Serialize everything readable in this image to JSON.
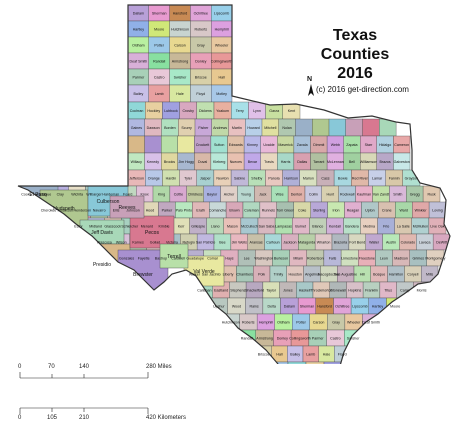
{
  "map": {
    "title_line1": "Texas",
    "title_line2": "Counties",
    "title_line3": "2016",
    "copyright": "(c) 2016 get-direction.com",
    "north_label": "N"
  },
  "scale": {
    "miles_ticks": [
      "0",
      "70",
      "140",
      "280 Miles"
    ],
    "km_ticks": [
      "0",
      "105",
      "210",
      "420 Kilometers"
    ]
  },
  "counties": [
    {
      "name": "Dallam",
      "color": "#b8a0d8"
    },
    {
      "name": "Sherman",
      "color": "#e89ad0"
    },
    {
      "name": "Hansford",
      "color": "#c88a54"
    },
    {
      "name": "Ochiltree",
      "color": "#e0a4d8"
    },
    {
      "name": "Lipscomb",
      "color": "#98d0ea"
    },
    {
      "name": "Hartley",
      "color": "#90b0e8"
    },
    {
      "name": "Moore",
      "color": "#d0e878"
    },
    {
      "name": "Hutchinson",
      "color": "#c8d4d0"
    },
    {
      "name": "Roberts",
      "color": "#d8c8c8"
    },
    {
      "name": "Hemphill",
      "color": "#dca0e0"
    },
    {
      "name": "Oldham",
      "color": "#b8f0a0"
    },
    {
      "name": "Potter",
      "color": "#9cc8e8"
    },
    {
      "name": "Carson",
      "color": "#e8d890"
    },
    {
      "name": "Gray",
      "color": "#c8c8a8"
    },
    {
      "name": "Wheeler",
      "color": "#e8c8a0"
    },
    {
      "name": "Deaf Smith",
      "color": "#d8b0d8"
    },
    {
      "name": "Randall",
      "color": "#88e0a0"
    },
    {
      "name": "Armstrong",
      "color": "#c8b898"
    },
    {
      "name": "Donley",
      "color": "#e8a0b8"
    },
    {
      "name": "Collingsworth",
      "color": "#e89898"
    },
    {
      "name": "Parmer",
      "color": "#a8d0b8"
    },
    {
      "name": "Castro",
      "color": "#e8c8d8"
    },
    {
      "name": "Swisher",
      "color": "#a8e8c8"
    },
    {
      "name": "Briscoe",
      "color": "#d8d0a8"
    },
    {
      "name": "Hall",
      "color": "#e8c890"
    },
    {
      "name": "Bailey",
      "color": "#c8c0e8"
    },
    {
      "name": "Lamb",
      "color": "#e8a0a0"
    },
    {
      "name": "Hale",
      "color": "#d8e8a0"
    },
    {
      "name": "Floyd",
      "color": "#c0d0d8"
    },
    {
      "name": "Motley",
      "color": "#a8c8e8"
    },
    {
      "name": "Cochran",
      "color": "#90d8d8"
    },
    {
      "name": "Hockley",
      "color": "#e8d0a0"
    },
    {
      "name": "Lubbock",
      "color": "#a0a0e0"
    },
    {
      "name": "Crosby",
      "color": "#d8a8c0"
    },
    {
      "name": "Dickens",
      "color": "#c0e0b0"
    },
    {
      "name": "Yoakum",
      "color": "#e8b0a0"
    },
    {
      "name": "Terry",
      "color": "#a8e0e8"
    },
    {
      "name": "Lynn",
      "color": "#e0c0e8"
    },
    {
      "name": "Garza",
      "color": "#c8e0a0"
    },
    {
      "name": "Kent",
      "color": "#e8e0b0"
    },
    {
      "name": "Gaines",
      "color": "#b0b8e0"
    },
    {
      "name": "Dawson",
      "color": "#e0b8c0"
    },
    {
      "name": "Borden",
      "color": "#b0e0c0"
    },
    {
      "name": "Scurry",
      "color": "#e0d0b0"
    },
    {
      "name": "Fisher",
      "color": "#c8a8d8"
    },
    {
      "name": "Andrews",
      "color": "#c0d8a8"
    },
    {
      "name": "Martin",
      "color": "#e8c0c0"
    },
    {
      "name": "Howard",
      "color": "#b8d0e8"
    },
    {
      "name": "Mitchell",
      "color": "#e0e0a0"
    },
    {
      "name": "Nolan",
      "color": "#b0c8b0"
    },
    {
      "name": "El Paso",
      "color": "#9ab0c8"
    },
    {
      "name": "Hudspeth",
      "color": "#b0c890"
    },
    {
      "name": "Culberson",
      "color": "#88c8d8"
    },
    {
      "name": "Reeves",
      "color": "#c8a0b8"
    },
    {
      "name": "Pecos",
      "color": "#d87890"
    },
    {
      "name": "Jeff Davis",
      "color": "#a8d8b8"
    },
    {
      "name": "Presidio",
      "color": "#d8b888"
    },
    {
      "name": "Brewster",
      "color": "#a890d0"
    },
    {
      "name": "Terrell",
      "color": "#b8e0a8"
    },
    {
      "name": "Val Verde",
      "color": "#e8e8a0"
    },
    {
      "name": "Crockett",
      "color": "#c0a0c8"
    },
    {
      "name": "Sutton",
      "color": "#a0e0d0"
    },
    {
      "name": "Edwards",
      "color": "#e0c0a8"
    },
    {
      "name": "Kinney",
      "color": "#b8b8e8"
    },
    {
      "name": "Uvalde",
      "color": "#e8b8d8"
    },
    {
      "name": "Maverick",
      "color": "#c8d8a0"
    },
    {
      "name": "Zavala",
      "color": "#a8c0d8"
    },
    {
      "name": "Dimmit",
      "color": "#d8a8a8"
    },
    {
      "name": "Webb",
      "color": "#d0a0e0"
    },
    {
      "name": "Zapata",
      "color": "#a8e0a8"
    },
    {
      "name": "Starr",
      "color": "#e0a8c8"
    },
    {
      "name": "Hidalgo",
      "color": "#b0d0e0"
    },
    {
      "name": "Cameron",
      "color": "#e8a8a8"
    },
    {
      "name": "Willacy",
      "color": "#c0e8c0"
    },
    {
      "name": "Kenedy",
      "color": "#d8c0e8"
    },
    {
      "name": "Brooks",
      "color": "#e0d8a0"
    },
    {
      "name": "Jim Hogg",
      "color": "#a8b8d0"
    },
    {
      "name": "Duval",
      "color": "#d8b8a8"
    },
    {
      "name": "Kleberg",
      "color": "#b8e8d8"
    },
    {
      "name": "Nueces",
      "color": "#e8c0b0"
    },
    {
      "name": "Bexar",
      "color": "#c0a8e8"
    },
    {
      "name": "Travis",
      "color": "#e8d8c0"
    },
    {
      "name": "Harris",
      "color": "#a8d8c8"
    },
    {
      "name": "Dallas",
      "color": "#d8a0b0"
    },
    {
      "name": "Tarrant",
      "color": "#b0c0a0"
    },
    {
      "name": "McLennan",
      "color": "#e0b0e0"
    },
    {
      "name": "Bell",
      "color": "#a0d0a0"
    },
    {
      "name": "Williamson",
      "color": "#d8d8b8"
    },
    {
      "name": "Brazos",
      "color": "#b8a8c8"
    },
    {
      "name": "Galveston",
      "color": "#c8e8e8"
    },
    {
      "name": "Jefferson",
      "color": "#e8b8b8"
    },
    {
      "name": "Orange",
      "color": "#b8c8e8"
    },
    {
      "name": "Hardin",
      "color": "#d0e0b0"
    },
    {
      "name": "Tyler",
      "color": "#e0c8d0"
    },
    {
      "name": "Jasper",
      "color": "#a8d0d0"
    },
    {
      "name": "Newton",
      "color": "#e8d0b8"
    },
    {
      "name": "Sabine",
      "color": "#c0b8d8"
    },
    {
      "name": "Shelby",
      "color": "#b8e0b8"
    },
    {
      "name": "Panola",
      "color": "#e8c8c0"
    },
    {
      "name": "Harrison",
      "color": "#b0b0d8"
    },
    {
      "name": "Marion",
      "color": "#d8e0c0"
    },
    {
      "name": "Cass",
      "color": "#c8b0b8"
    },
    {
      "name": "Bowie",
      "color": "#a8d8e0"
    },
    {
      "name": "Red River",
      "color": "#e0b8a8"
    },
    {
      "name": "Lamar",
      "color": "#c8d0e8"
    },
    {
      "name": "Fannin",
      "color": "#d8c8a8"
    },
    {
      "name": "Grayson",
      "color": "#b0e0d0"
    },
    {
      "name": "Cooke",
      "color": "#e0a8b8"
    },
    {
      "name": "Montague",
      "color": "#c8e0b8"
    },
    {
      "name": "Clay",
      "color": "#b8b0e0"
    },
    {
      "name": "Wichita",
      "color": "#e8e0c8"
    },
    {
      "name": "Wilbarger",
      "color": "#a8c8c0"
    },
    {
      "name": "Hardeman",
      "color": "#d8b0c8"
    },
    {
      "name": "Foard",
      "color": "#c0d8c0"
    },
    {
      "name": "Knox",
      "color": "#e0c0d8"
    },
    {
      "name": "King",
      "color": "#b0d8a8"
    },
    {
      "name": "Cottle",
      "color": "#d8a8d0"
    },
    {
      "name": "Childress",
      "color": "#c0c8a0"
    },
    {
      "name": "Baylor",
      "color": "#a8b0e0"
    },
    {
      "name": "Archer",
      "color": "#e0d0c8"
    },
    {
      "name": "Young",
      "color": "#b8d8d0"
    },
    {
      "name": "Jack",
      "color": "#d0b8b0"
    },
    {
      "name": "Wise",
      "color": "#a8e0b8"
    },
    {
      "name": "Denton",
      "color": "#e0b0a8"
    },
    {
      "name": "Collin",
      "color": "#c8c8e0"
    },
    {
      "name": "Hunt",
      "color": "#d8d0b0"
    },
    {
      "name": "Rockwall",
      "color": "#b0c8d8"
    },
    {
      "name": "Kaufman",
      "color": "#e8b0c8"
    },
    {
      "name": "Van Zandt",
      "color": "#c0e0a8"
    },
    {
      "name": "Smith",
      "color": "#d8b8d8"
    },
    {
      "name": "Gregg",
      "color": "#a8c8a8"
    },
    {
      "name": "Rusk",
      "color": "#e0c8b0"
    },
    {
      "name": "Cherokee",
      "color": "#b8b8c8"
    },
    {
      "name": "Anderson",
      "color": "#d0e8c8"
    },
    {
      "name": "Henderson",
      "color": "#e8a8c0"
    },
    {
      "name": "Navarro",
      "color": "#b0d0b0"
    },
    {
      "name": "Ellis",
      "color": "#d8c0c0"
    },
    {
      "name": "Johnson",
      "color": "#a8b8c8"
    },
    {
      "name": "Hood",
      "color": "#e0d8b8"
    },
    {
      "name": "Parker",
      "color": "#c0a8c0"
    },
    {
      "name": "Palo Pinto",
      "color": "#b8e8c0"
    },
    {
      "name": "Erath",
      "color": "#e0b8b8"
    },
    {
      "name": "Comanche",
      "color": "#c8d8d8"
    },
    {
      "name": "Brown",
      "color": "#d8a8b8"
    },
    {
      "name": "Coleman",
      "color": "#b0d8c0"
    },
    {
      "name": "Runnels",
      "color": "#e0c0c8"
    },
    {
      "name": "Tom Green",
      "color": "#a8c0b0"
    },
    {
      "name": "Coke",
      "color": "#d8d8a8"
    },
    {
      "name": "Sterling",
      "color": "#b8a8d8"
    },
    {
      "name": "Irion",
      "color": "#c8e8b0"
    },
    {
      "name": "Reagan",
      "color": "#e0b0d0"
    },
    {
      "name": "Upton",
      "color": "#b0c8c8"
    },
    {
      "name": "Crane",
      "color": "#d8c0b0"
    },
    {
      "name": "Ward",
      "color": "#a8d8a8"
    },
    {
      "name": "Winkler",
      "color": "#e0a8a8"
    },
    {
      "name": "Loving",
      "color": "#c0c0d8"
    },
    {
      "name": "Ector",
      "color": "#d0d8b8"
    },
    {
      "name": "Midland",
      "color": "#b8c0e0"
    },
    {
      "name": "Glasscock",
      "color": "#e0c8b8"
    },
    {
      "name": "Schleicher",
      "color": "#a8d0c0"
    },
    {
      "name": "Menard",
      "color": "#d8b0b0"
    },
    {
      "name": "Kimble",
      "color": "#b0b8d0"
    },
    {
      "name": "Kerr",
      "color": "#e0e0b8"
    },
    {
      "name": "Gillespie",
      "color": "#c0b0c8"
    },
    {
      "name": "Llano",
      "color": "#b8d8b8"
    },
    {
      "name": "Mason",
      "color": "#e8c0b8"
    },
    {
      "name": "McCulloch",
      "color": "#a8c8d0"
    },
    {
      "name": "San Saba",
      "color": "#d8b8c0"
    },
    {
      "name": "Lampasas",
      "color": "#b0e0b0"
    },
    {
      "name": "Burnet",
      "color": "#e0b8c8"
    },
    {
      "name": "Blanco",
      "color": "#c0d0b8"
    },
    {
      "name": "Kendall",
      "color": "#d0b0d8"
    },
    {
      "name": "Bandera",
      "color": "#b8e0c8"
    },
    {
      "name": "Medina",
      "color": "#e8d0c0"
    },
    {
      "name": "Frio",
      "color": "#a8b0d8"
    },
    {
      "name": "La Salle",
      "color": "#d8c8b0"
    },
    {
      "name": "McMullen",
      "color": "#b0d0d0"
    },
    {
      "name": "Live Oak",
      "color": "#e0b0b8"
    },
    {
      "name": "Atascosa",
      "color": "#c0e0c0"
    },
    {
      "name": "Wilson",
      "color": "#d8c0d8"
    },
    {
      "name": "Karnes",
      "color": "#b8c8b0"
    },
    {
      "name": "Goliad",
      "color": "#e0c0c0"
    },
    {
      "name": "Victoria",
      "color": "#a8c0c8"
    },
    {
      "name": "Refugio",
      "color": "#d0d0b0"
    },
    {
      "name": "San Patricio",
      "color": "#c0b8e0"
    },
    {
      "name": "Bee",
      "color": "#b0e0c8"
    },
    {
      "name": "Jim Wells",
      "color": "#e8b8c0"
    },
    {
      "name": "Aransas",
      "color": "#c8c0a8"
    },
    {
      "name": "Calhoun",
      "color": "#a8d8d8"
    },
    {
      "name": "Jackson",
      "color": "#d8b0c0"
    },
    {
      "name": "Matagorda",
      "color": "#b8d0a8"
    },
    {
      "name": "Wharton",
      "color": "#e0c8c8"
    },
    {
      "name": "Brazoria",
      "color": "#b0b8c0"
    },
    {
      "name": "Fort Bend",
      "color": "#d8d8c0"
    },
    {
      "name": "Waller",
      "color": "#c0a8d0"
    },
    {
      "name": "Austin",
      "color": "#b8e8b8"
    },
    {
      "name": "Colorado",
      "color": "#e0b8b0"
    },
    {
      "name": "Lavaca",
      "color": "#c8d0d8"
    },
    {
      "name": "DeWitt",
      "color": "#d8a8c0"
    },
    {
      "name": "Gonzales",
      "color": "#b0d8b8"
    },
    {
      "name": "Fayette",
      "color": "#e0c0b8"
    },
    {
      "name": "Bastrop",
      "color": "#a8b8b8"
    },
    {
      "name": "Caldwell",
      "color": "#d8d0c8"
    },
    {
      "name": "Guadalupe",
      "color": "#b8b0d0"
    },
    {
      "name": "Comal",
      "color": "#c8e0c0"
    },
    {
      "name": "Hays",
      "color": "#e0b0c0"
    },
    {
      "name": "Lee",
      "color": "#b0c0b8"
    },
    {
      "name": "Washington",
      "color": "#d8c8c0"
    },
    {
      "name": "Burleson",
      "color": "#a8d0b8"
    },
    {
      "name": "Milam",
      "color": "#e0b8c0"
    },
    {
      "name": "Robertson",
      "color": "#c0c8b0"
    },
    {
      "name": "Falls",
      "color": "#b8b8d8"
    },
    {
      "name": "Limestone",
      "color": "#d0e0c0"
    },
    {
      "name": "Freestone",
      "color": "#e8b0b8"
    },
    {
      "name": "Leon",
      "color": "#b0c8c0"
    },
    {
      "name": "Madison",
      "color": "#d8b8b8"
    },
    {
      "name": "Grimes",
      "color": "#a8c0c0"
    },
    {
      "name": "Montgomery",
      "color": "#e0d0c0"
    },
    {
      "name": "Walker",
      "color": "#c0b0d8"
    },
    {
      "name": "San Jacinto",
      "color": "#b8d8c0"
    },
    {
      "name": "Liberty",
      "color": "#e0c0b0"
    },
    {
      "name": "Chambers",
      "color": "#a8c8b8"
    },
    {
      "name": "Polk",
      "color": "#d8b0b8"
    },
    {
      "name": "Trinity",
      "color": "#b0d0c8"
    },
    {
      "name": "Houston",
      "color": "#e0c8c0"
    },
    {
      "name": "Angelina",
      "color": "#b8c0c8"
    },
    {
      "name": "Nacogdoches",
      "color": "#d0d8c0"
    },
    {
      "name": "San Augustine",
      "color": "#c8b0c0"
    },
    {
      "name": "Hill",
      "color": "#b8e0b0"
    },
    {
      "name": "Bosque",
      "color": "#e0b8b8"
    },
    {
      "name": "Hamilton",
      "color": "#b0c0c8"
    },
    {
      "name": "Coryell",
      "color": "#d8d0b8"
    },
    {
      "name": "Mills",
      "color": "#c0b8c8"
    },
    {
      "name": "Callahan",
      "color": "#a8d8c0"
    },
    {
      "name": "Eastland",
      "color": "#e0b0b0"
    },
    {
      "name": "Stephens",
      "color": "#c8c8c0"
    },
    {
      "name": "Shackelford",
      "color": "#b8a8c0"
    },
    {
      "name": "Taylor",
      "color": "#d8e0b8"
    },
    {
      "name": "Jones",
      "color": "#c0b8b8"
    },
    {
      "name": "Haskell",
      "color": "#a8c8c8"
    },
    {
      "name": "Throckmorton",
      "color": "#e0c8b8"
    },
    {
      "name": "Stonewall",
      "color": "#b0b8b8"
    },
    {
      "name": "Hopkins",
      "color": "#d8c0c8"
    },
    {
      "name": "Franklin",
      "color": "#b8d0c0"
    },
    {
      "name": "Titus",
      "color": "#e0b8c8"
    },
    {
      "name": "Camp",
      "color": "#c0c8c8"
    },
    {
      "name": "Morris",
      "color": "#d0b8c0"
    },
    {
      "name": "Upshur",
      "color": "#b8c8c0"
    },
    {
      "name": "Wood",
      "color": "#d8d8c8"
    },
    {
      "name": "Rains",
      "color": "#c0c0c8"
    },
    {
      "name": "Delta",
      "color": "#b8d8c8"
    }
  ]
}
